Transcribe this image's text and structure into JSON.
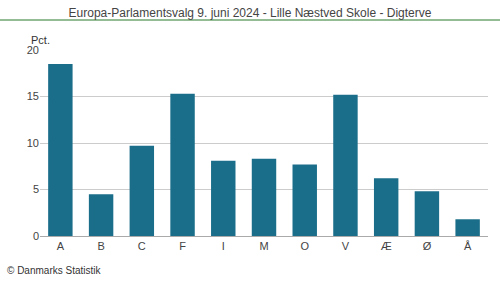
{
  "chart_data": {
    "type": "bar",
    "title": "Europa-Parlamentsvalg 9. juni 2024 - Lille Næstved Skole - Digterve",
    "categories": [
      "A",
      "B",
      "C",
      "F",
      "I",
      "M",
      "O",
      "V",
      "Æ",
      "Ø",
      "Å"
    ],
    "values": [
      18.5,
      4.5,
      9.7,
      15.3,
      8.1,
      8.3,
      7.7,
      15.2,
      6.2,
      4.8,
      1.8
    ],
    "color": "#1a6e8a",
    "ylabel": "Pct.",
    "ylim": [
      0,
      20
    ],
    "yticks": [
      0,
      5,
      10,
      15,
      20
    ],
    "grid": true,
    "annotations": [
      "© Danmarks Statistik"
    ]
  }
}
